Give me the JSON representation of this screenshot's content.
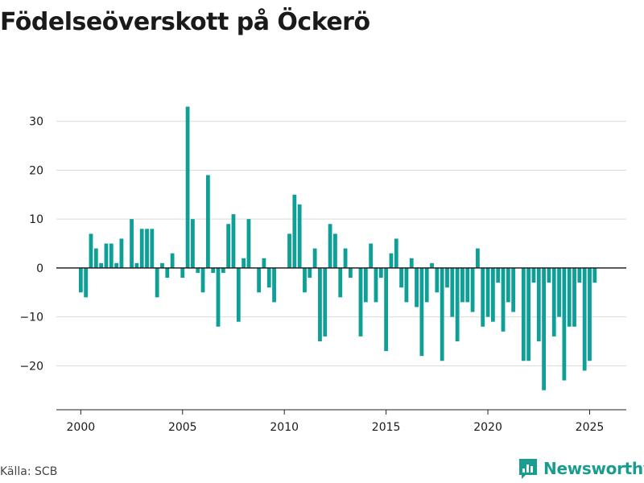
{
  "title": "Födelseöverskott på Öckerö",
  "source": "Källa: SCB",
  "brand": "Newsworthy",
  "colors": {
    "bar": "#0e9f96",
    "brand": "#1a9c8f"
  },
  "chart_data": {
    "type": "bar",
    "x_label_ticks": [
      {
        "value": 2000,
        "label": "2000"
      },
      {
        "value": 2005,
        "label": "2005"
      },
      {
        "value": 2010,
        "label": "2010"
      },
      {
        "value": 2015,
        "label": "2015"
      },
      {
        "value": 2020,
        "label": "2020"
      },
      {
        "value": 2025,
        "label": "2025"
      }
    ],
    "y_ticks": [
      {
        "value": -20,
        "label": "−20"
      },
      {
        "value": -10,
        "label": "−10"
      },
      {
        "value": 0,
        "label": "0"
      },
      {
        "value": 10,
        "label": "10"
      },
      {
        "value": 20,
        "label": "20"
      },
      {
        "value": 30,
        "label": "30"
      }
    ],
    "ylim": [
      -29,
      40
    ],
    "xlim": [
      1998.8,
      2026.8
    ],
    "grid": true,
    "x": [
      "2000-01",
      "2000-04",
      "2000-07",
      "2000-10",
      "2001-01",
      "2001-04",
      "2001-07",
      "2001-10",
      "2002-01",
      "2002-04",
      "2002-07",
      "2002-10",
      "2003-01",
      "2003-04",
      "2003-07",
      "2003-10",
      "2004-01",
      "2004-04",
      "2004-07",
      "2004-10",
      "2005-01",
      "2005-04",
      "2005-07",
      "2005-10",
      "2006-01",
      "2006-04",
      "2006-07",
      "2006-10",
      "2007-01",
      "2007-04",
      "2007-07",
      "2007-10",
      "2008-01",
      "2008-04",
      "2008-07",
      "2008-10",
      "2009-01",
      "2009-04",
      "2009-07",
      "2009-10",
      "2010-01",
      "2010-04",
      "2010-07",
      "2010-10",
      "2011-01",
      "2011-04",
      "2011-07",
      "2011-10",
      "2012-01",
      "2012-04",
      "2012-07",
      "2012-10",
      "2013-01",
      "2013-04",
      "2013-07",
      "2013-10",
      "2014-01",
      "2014-04",
      "2014-07",
      "2014-10",
      "2015-01",
      "2015-04",
      "2015-07",
      "2015-10",
      "2016-01",
      "2016-04",
      "2016-07",
      "2016-10",
      "2017-01",
      "2017-04",
      "2017-07",
      "2017-10",
      "2018-01",
      "2018-04",
      "2018-07",
      "2018-10",
      "2019-01",
      "2019-04",
      "2019-07",
      "2019-10",
      "2020-01",
      "2020-04",
      "2020-07",
      "2020-10",
      "2021-01",
      "2021-04",
      "2021-07",
      "2021-10",
      "2022-01",
      "2022-04",
      "2022-07",
      "2022-10",
      "2023-01",
      "2023-04",
      "2023-07",
      "2023-10",
      "2024-01",
      "2024-04",
      "2024-07",
      "2024-10",
      "2025-01",
      "2025-04"
    ],
    "values": [
      -5,
      -6,
      7,
      4,
      1,
      5,
      5,
      1,
      6,
      0,
      10,
      1,
      8,
      8,
      8,
      -6,
      1,
      -2,
      3,
      0,
      -2,
      33,
      10,
      -1,
      -5,
      19,
      -1,
      -12,
      -1,
      9,
      11,
      -11,
      2,
      10,
      0,
      -5,
      2,
      -4,
      -7,
      0,
      0,
      7,
      15,
      13,
      -5,
      -2,
      4,
      -15,
      -14,
      9,
      7,
      -6,
      4,
      -2,
      0,
      -14,
      -7,
      5,
      -7,
      -2,
      -17,
      3,
      6,
      -4,
      -7,
      2,
      -8,
      -18,
      -7,
      1,
      -5,
      -19,
      -4,
      -10,
      -15,
      -7,
      -7,
      -9,
      4,
      -12,
      -10,
      -11,
      -3,
      -13,
      -7,
      -9,
      0,
      -19,
      -19,
      -3,
      -15,
      -25,
      -3,
      -14,
      -10,
      -23,
      -12,
      -12,
      -3,
      -21,
      -19,
      -3
    ]
  }
}
